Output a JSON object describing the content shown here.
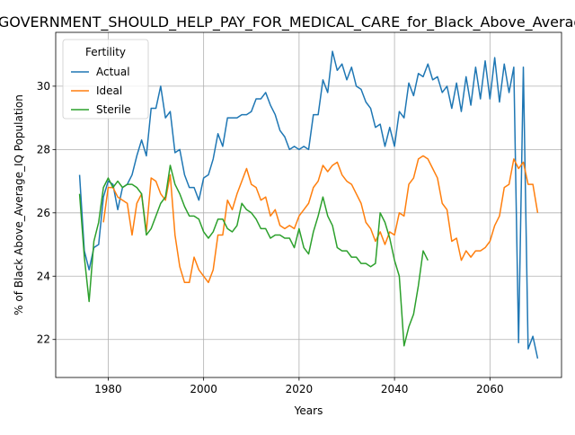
{
  "chart_data": {
    "type": "line",
    "title": "B_in_GOVERNMENT_SHOULD_HELP_PAY_FOR_MEDICAL_CARE_for_Black_Above_Average_IQ",
    "xlabel": "Years",
    "ylabel": "% of Black Above_Average_IQ Population",
    "xlim": [
      1969,
      2075
    ],
    "ylim": [
      20.8,
      31.7
    ],
    "xticks": [
      1980,
      2000,
      2020,
      2040,
      2060
    ],
    "yticks": [
      22,
      24,
      26,
      28,
      30
    ],
    "grid": true,
    "legend": {
      "title": "Fertility",
      "placement": "top-left"
    },
    "series": [
      {
        "name": "Actual",
        "color": "#1f77b4",
        "points": [
          [
            1974,
            27.2
          ],
          [
            1975,
            24.8
          ],
          [
            1976,
            24.2
          ],
          [
            1977,
            24.9
          ],
          [
            1978,
            25.0
          ],
          [
            1979,
            26.5
          ],
          [
            1980,
            27.0
          ],
          [
            1981,
            26.9
          ],
          [
            1982,
            26.1
          ],
          [
            1983,
            26.8
          ],
          [
            1984,
            26.9
          ],
          [
            1985,
            27.2
          ],
          [
            1986,
            27.8
          ],
          [
            1987,
            28.3
          ],
          [
            1988,
            27.8
          ],
          [
            1989,
            29.3
          ],
          [
            1990,
            29.3
          ],
          [
            1991,
            30.0
          ],
          [
            1992,
            29.0
          ],
          [
            1993,
            29.2
          ],
          [
            1994,
            27.9
          ],
          [
            1995,
            28.0
          ],
          [
            1996,
            27.2
          ],
          [
            1997,
            26.8
          ],
          [
            1998,
            26.8
          ],
          [
            1999,
            26.4
          ],
          [
            2000,
            27.1
          ],
          [
            2001,
            27.2
          ],
          [
            2002,
            27.7
          ],
          [
            2003,
            28.5
          ],
          [
            2004,
            28.1
          ],
          [
            2005,
            29.0
          ],
          [
            2006,
            29.0
          ],
          [
            2007,
            29.0
          ],
          [
            2008,
            29.1
          ],
          [
            2009,
            29.1
          ],
          [
            2010,
            29.2
          ],
          [
            2011,
            29.6
          ],
          [
            2012,
            29.6
          ],
          [
            2013,
            29.8
          ],
          [
            2014,
            29.4
          ],
          [
            2015,
            29.1
          ],
          [
            2016,
            28.6
          ],
          [
            2017,
            28.4
          ],
          [
            2018,
            28.0
          ],
          [
            2019,
            28.1
          ],
          [
            2020,
            28.0
          ],
          [
            2021,
            28.1
          ],
          [
            2022,
            28.0
          ],
          [
            2023,
            29.1
          ],
          [
            2024,
            29.1
          ],
          [
            2025,
            30.2
          ],
          [
            2026,
            29.8
          ],
          [
            2027,
            31.1
          ],
          [
            2028,
            30.5
          ],
          [
            2029,
            30.7
          ],
          [
            2030,
            30.2
          ],
          [
            2031,
            30.6
          ],
          [
            2032,
            30.0
          ],
          [
            2033,
            29.9
          ],
          [
            2034,
            29.5
          ],
          [
            2035,
            29.3
          ],
          [
            2036,
            28.7
          ],
          [
            2037,
            28.8
          ],
          [
            2038,
            28.1
          ],
          [
            2039,
            28.7
          ],
          [
            2040,
            28.1
          ],
          [
            2041,
            29.2
          ],
          [
            2042,
            29.0
          ],
          [
            2043,
            30.1
          ],
          [
            2044,
            29.7
          ],
          [
            2045,
            30.4
          ],
          [
            2046,
            30.3
          ],
          [
            2047,
            30.7
          ],
          [
            2048,
            30.2
          ],
          [
            2049,
            30.3
          ],
          [
            2050,
            29.8
          ],
          [
            2051,
            30.0
          ],
          [
            2052,
            29.3
          ],
          [
            2053,
            30.1
          ],
          [
            2054,
            29.2
          ],
          [
            2055,
            30.3
          ],
          [
            2056,
            29.4
          ],
          [
            2057,
            30.6
          ],
          [
            2058,
            29.6
          ],
          [
            2059,
            30.8
          ],
          [
            2060,
            29.6
          ],
          [
            2061,
            30.9
          ],
          [
            2062,
            29.5
          ],
          [
            2063,
            30.7
          ],
          [
            2064,
            29.8
          ],
          [
            2065,
            30.6
          ],
          [
            2066,
            21.9
          ],
          [
            2067,
            30.6
          ],
          [
            2068,
            21.7
          ],
          [
            2069,
            22.1
          ],
          [
            2070,
            21.4
          ]
        ]
      },
      {
        "name": "Ideal",
        "color": "#ff7f0e",
        "points": [
          [
            1979,
            25.7
          ],
          [
            1980,
            26.8
          ],
          [
            1981,
            26.8
          ],
          [
            1982,
            26.5
          ],
          [
            1983,
            26.4
          ],
          [
            1984,
            26.3
          ],
          [
            1985,
            25.3
          ],
          [
            1986,
            26.3
          ],
          [
            1987,
            26.6
          ],
          [
            1988,
            25.4
          ],
          [
            1989,
            27.1
          ],
          [
            1990,
            27.0
          ],
          [
            1991,
            26.6
          ],
          [
            1992,
            26.4
          ],
          [
            1993,
            27.2
          ],
          [
            1994,
            25.3
          ],
          [
            1995,
            24.3
          ],
          [
            1996,
            23.8
          ],
          [
            1997,
            23.8
          ],
          [
            1998,
            24.6
          ],
          [
            1999,
            24.2
          ],
          [
            2000,
            24.0
          ],
          [
            2001,
            23.8
          ],
          [
            2002,
            24.2
          ],
          [
            2003,
            25.3
          ],
          [
            2004,
            25.3
          ],
          [
            2005,
            26.4
          ],
          [
            2006,
            26.1
          ],
          [
            2007,
            26.6
          ],
          [
            2008,
            27.0
          ],
          [
            2009,
            27.4
          ],
          [
            2010,
            26.9
          ],
          [
            2011,
            26.8
          ],
          [
            2012,
            26.4
          ],
          [
            2013,
            26.5
          ],
          [
            2014,
            25.9
          ],
          [
            2015,
            26.1
          ],
          [
            2016,
            25.6
          ],
          [
            2017,
            25.5
          ],
          [
            2018,
            25.6
          ],
          [
            2019,
            25.5
          ],
          [
            2020,
            25.9
          ],
          [
            2021,
            26.1
          ],
          [
            2022,
            26.3
          ],
          [
            2023,
            26.8
          ],
          [
            2024,
            27.0
          ],
          [
            2025,
            27.5
          ],
          [
            2026,
            27.3
          ],
          [
            2027,
            27.5
          ],
          [
            2028,
            27.6
          ],
          [
            2029,
            27.2
          ],
          [
            2030,
            27.0
          ],
          [
            2031,
            26.9
          ],
          [
            2032,
            26.6
          ],
          [
            2033,
            26.3
          ],
          [
            2034,
            25.7
          ],
          [
            2035,
            25.5
          ],
          [
            2036,
            25.1
          ],
          [
            2037,
            25.4
          ],
          [
            2038,
            25.0
          ],
          [
            2039,
            25.4
          ],
          [
            2040,
            25.3
          ],
          [
            2041,
            26.0
          ],
          [
            2042,
            25.9
          ],
          [
            2043,
            26.9
          ],
          [
            2044,
            27.1
          ],
          [
            2045,
            27.7
          ],
          [
            2046,
            27.8
          ],
          [
            2047,
            27.7
          ],
          [
            2048,
            27.4
          ],
          [
            2049,
            27.1
          ],
          [
            2050,
            26.3
          ],
          [
            2051,
            26.1
          ],
          [
            2052,
            25.1
          ],
          [
            2053,
            25.2
          ],
          [
            2054,
            24.5
          ],
          [
            2055,
            24.8
          ],
          [
            2056,
            24.6
          ],
          [
            2057,
            24.8
          ],
          [
            2058,
            24.8
          ],
          [
            2059,
            24.9
          ],
          [
            2060,
            25.1
          ],
          [
            2061,
            25.6
          ],
          [
            2062,
            25.9
          ],
          [
            2063,
            26.8
          ],
          [
            2064,
            26.9
          ],
          [
            2065,
            27.7
          ],
          [
            2066,
            27.4
          ],
          [
            2067,
            27.6
          ],
          [
            2068,
            26.9
          ],
          [
            2069,
            26.9
          ],
          [
            2070,
            26.0
          ]
        ]
      },
      {
        "name": "Sterile",
        "color": "#2ca02c",
        "points": [
          [
            1974,
            26.6
          ],
          [
            1975,
            24.6
          ],
          [
            1976,
            23.2
          ],
          [
            1977,
            25.1
          ],
          [
            1978,
            25.7
          ],
          [
            1979,
            26.8
          ],
          [
            1980,
            27.1
          ],
          [
            1981,
            26.8
          ],
          [
            1982,
            27.0
          ],
          [
            1983,
            26.8
          ],
          [
            1984,
            26.9
          ],
          [
            1985,
            26.9
          ],
          [
            1986,
            26.8
          ],
          [
            1987,
            26.6
          ],
          [
            1988,
            25.3
          ],
          [
            1989,
            25.5
          ],
          [
            1990,
            25.9
          ],
          [
            1991,
            26.3
          ],
          [
            1992,
            26.5
          ],
          [
            1993,
            27.5
          ],
          [
            1994,
            26.9
          ],
          [
            1995,
            26.6
          ],
          [
            1996,
            26.2
          ],
          [
            1997,
            25.9
          ],
          [
            1998,
            25.9
          ],
          [
            1999,
            25.8
          ],
          [
            2000,
            25.4
          ],
          [
            2001,
            25.2
          ],
          [
            2002,
            25.4
          ],
          [
            2003,
            25.8
          ],
          [
            2004,
            25.8
          ],
          [
            2005,
            25.5
          ],
          [
            2006,
            25.4
          ],
          [
            2007,
            25.6
          ],
          [
            2008,
            26.3
          ],
          [
            2009,
            26.1
          ],
          [
            2010,
            26.0
          ],
          [
            2011,
            25.8
          ],
          [
            2012,
            25.5
          ],
          [
            2013,
            25.5
          ],
          [
            2014,
            25.2
          ],
          [
            2015,
            25.3
          ],
          [
            2016,
            25.3
          ],
          [
            2017,
            25.2
          ],
          [
            2018,
            25.2
          ],
          [
            2019,
            24.9
          ],
          [
            2020,
            25.5
          ],
          [
            2021,
            24.9
          ],
          [
            2022,
            24.7
          ],
          [
            2023,
            25.4
          ],
          [
            2024,
            25.9
          ],
          [
            2025,
            26.5
          ],
          [
            2026,
            25.9
          ],
          [
            2027,
            25.6
          ],
          [
            2028,
            24.9
          ],
          [
            2029,
            24.8
          ],
          [
            2030,
            24.8
          ],
          [
            2031,
            24.6
          ],
          [
            2032,
            24.6
          ],
          [
            2033,
            24.4
          ],
          [
            2034,
            24.4
          ],
          [
            2035,
            24.3
          ],
          [
            2036,
            24.4
          ],
          [
            2037,
            26.0
          ],
          [
            2038,
            25.7
          ],
          [
            2039,
            25.2
          ],
          [
            2040,
            24.5
          ],
          [
            2041,
            24.0
          ],
          [
            2042,
            21.8
          ],
          [
            2043,
            22.4
          ],
          [
            2044,
            22.8
          ],
          [
            2045,
            23.7
          ],
          [
            2046,
            24.8
          ],
          [
            2047,
            24.5
          ]
        ]
      }
    ]
  }
}
